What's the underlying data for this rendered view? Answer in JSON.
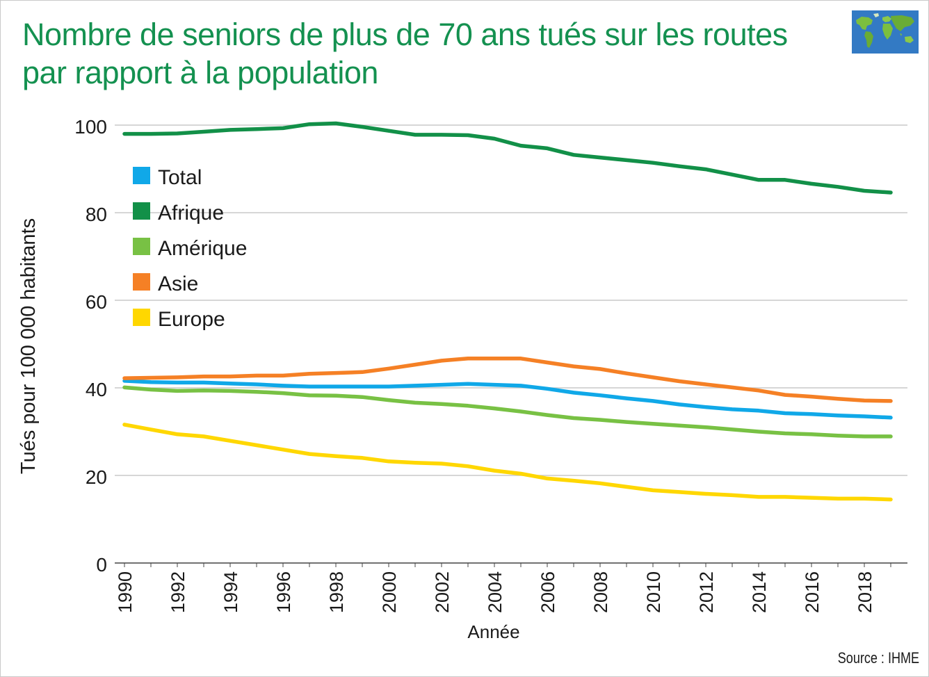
{
  "title_lines": [
    "Nombre de seniors de plus de 70 ans tués sur les routes",
    "par rapport à la population"
  ],
  "source": "Source : IHME",
  "globe_icon": "world-map-icon",
  "colors": {
    "title": "#149150",
    "grid": "#c8c8c8",
    "axis": "#444444"
  },
  "chart_data": {
    "type": "line",
    "title": "Nombre de seniors de plus de 70 ans tués sur les routes par rapport à la population",
    "xlabel": "Année",
    "ylabel": "Tués pour 100 000 habitants",
    "xlim": [
      1990,
      2019
    ],
    "ylim": [
      0,
      100
    ],
    "yticks": [
      "0",
      "20",
      "40",
      "60",
      "80",
      "100"
    ],
    "xticks": [
      "1990",
      "1992",
      "1994",
      "1996",
      "1998",
      "2000",
      "2002",
      "2004",
      "2006",
      "2008",
      "2010",
      "2012",
      "2014",
      "2016",
      "2018"
    ],
    "grid": true,
    "legend_position": "top-left",
    "x": [
      1990,
      1991,
      1992,
      1993,
      1994,
      1995,
      1996,
      1997,
      1998,
      1999,
      2000,
      2001,
      2002,
      2003,
      2004,
      2005,
      2006,
      2007,
      2008,
      2009,
      2010,
      2011,
      2012,
      2013,
      2014,
      2015,
      2016,
      2017,
      2018,
      2019
    ],
    "series": [
      {
        "name": "Total",
        "color": "#10a8e8",
        "values": [
          41.6,
          41.3,
          41.2,
          41.2,
          41.0,
          40.8,
          40.5,
          40.3,
          40.3,
          40.3,
          40.3,
          40.5,
          40.7,
          40.9,
          40.7,
          40.5,
          39.8,
          38.9,
          38.3,
          37.6,
          37.0,
          36.2,
          35.6,
          35.1,
          34.8,
          34.2,
          34.0,
          33.7,
          33.5,
          33.2
        ]
      },
      {
        "name": "Afrique",
        "color": "#129048",
        "values": [
          98.0,
          98.0,
          98.1,
          98.5,
          98.9,
          99.1,
          99.3,
          100.2,
          100.4,
          99.6,
          98.7,
          97.8,
          97.8,
          97.7,
          96.9,
          95.3,
          94.7,
          93.2,
          92.6,
          92.0,
          91.4,
          90.6,
          89.9,
          88.7,
          87.5,
          87.5,
          86.6,
          85.9,
          85.0,
          84.6
        ]
      },
      {
        "name": "Amérique",
        "color": "#78c144",
        "values": [
          40.1,
          39.6,
          39.3,
          39.4,
          39.3,
          39.1,
          38.8,
          38.3,
          38.2,
          37.9,
          37.2,
          36.6,
          36.3,
          35.9,
          35.3,
          34.6,
          33.8,
          33.1,
          32.7,
          32.2,
          31.8,
          31.4,
          31.0,
          30.5,
          30.0,
          29.6,
          29.4,
          29.1,
          28.9,
          28.9
        ]
      },
      {
        "name": "Asie",
        "color": "#f58025",
        "values": [
          42.2,
          42.3,
          42.4,
          42.6,
          42.6,
          42.8,
          42.8,
          43.2,
          43.4,
          43.6,
          44.4,
          45.3,
          46.2,
          46.7,
          46.7,
          46.7,
          45.8,
          44.9,
          44.3,
          43.3,
          42.4,
          41.5,
          40.8,
          40.1,
          39.4,
          38.4,
          38.0,
          37.5,
          37.1,
          37.0
        ]
      },
      {
        "name": "Europe",
        "color": "#ffd700",
        "values": [
          31.6,
          30.5,
          29.4,
          28.9,
          27.9,
          26.9,
          25.9,
          24.9,
          24.4,
          24.0,
          23.2,
          22.9,
          22.7,
          22.1,
          21.1,
          20.4,
          19.3,
          18.8,
          18.2,
          17.4,
          16.6,
          16.2,
          15.8,
          15.5,
          15.1,
          15.1,
          14.9,
          14.7,
          14.7,
          14.5
        ]
      }
    ]
  }
}
